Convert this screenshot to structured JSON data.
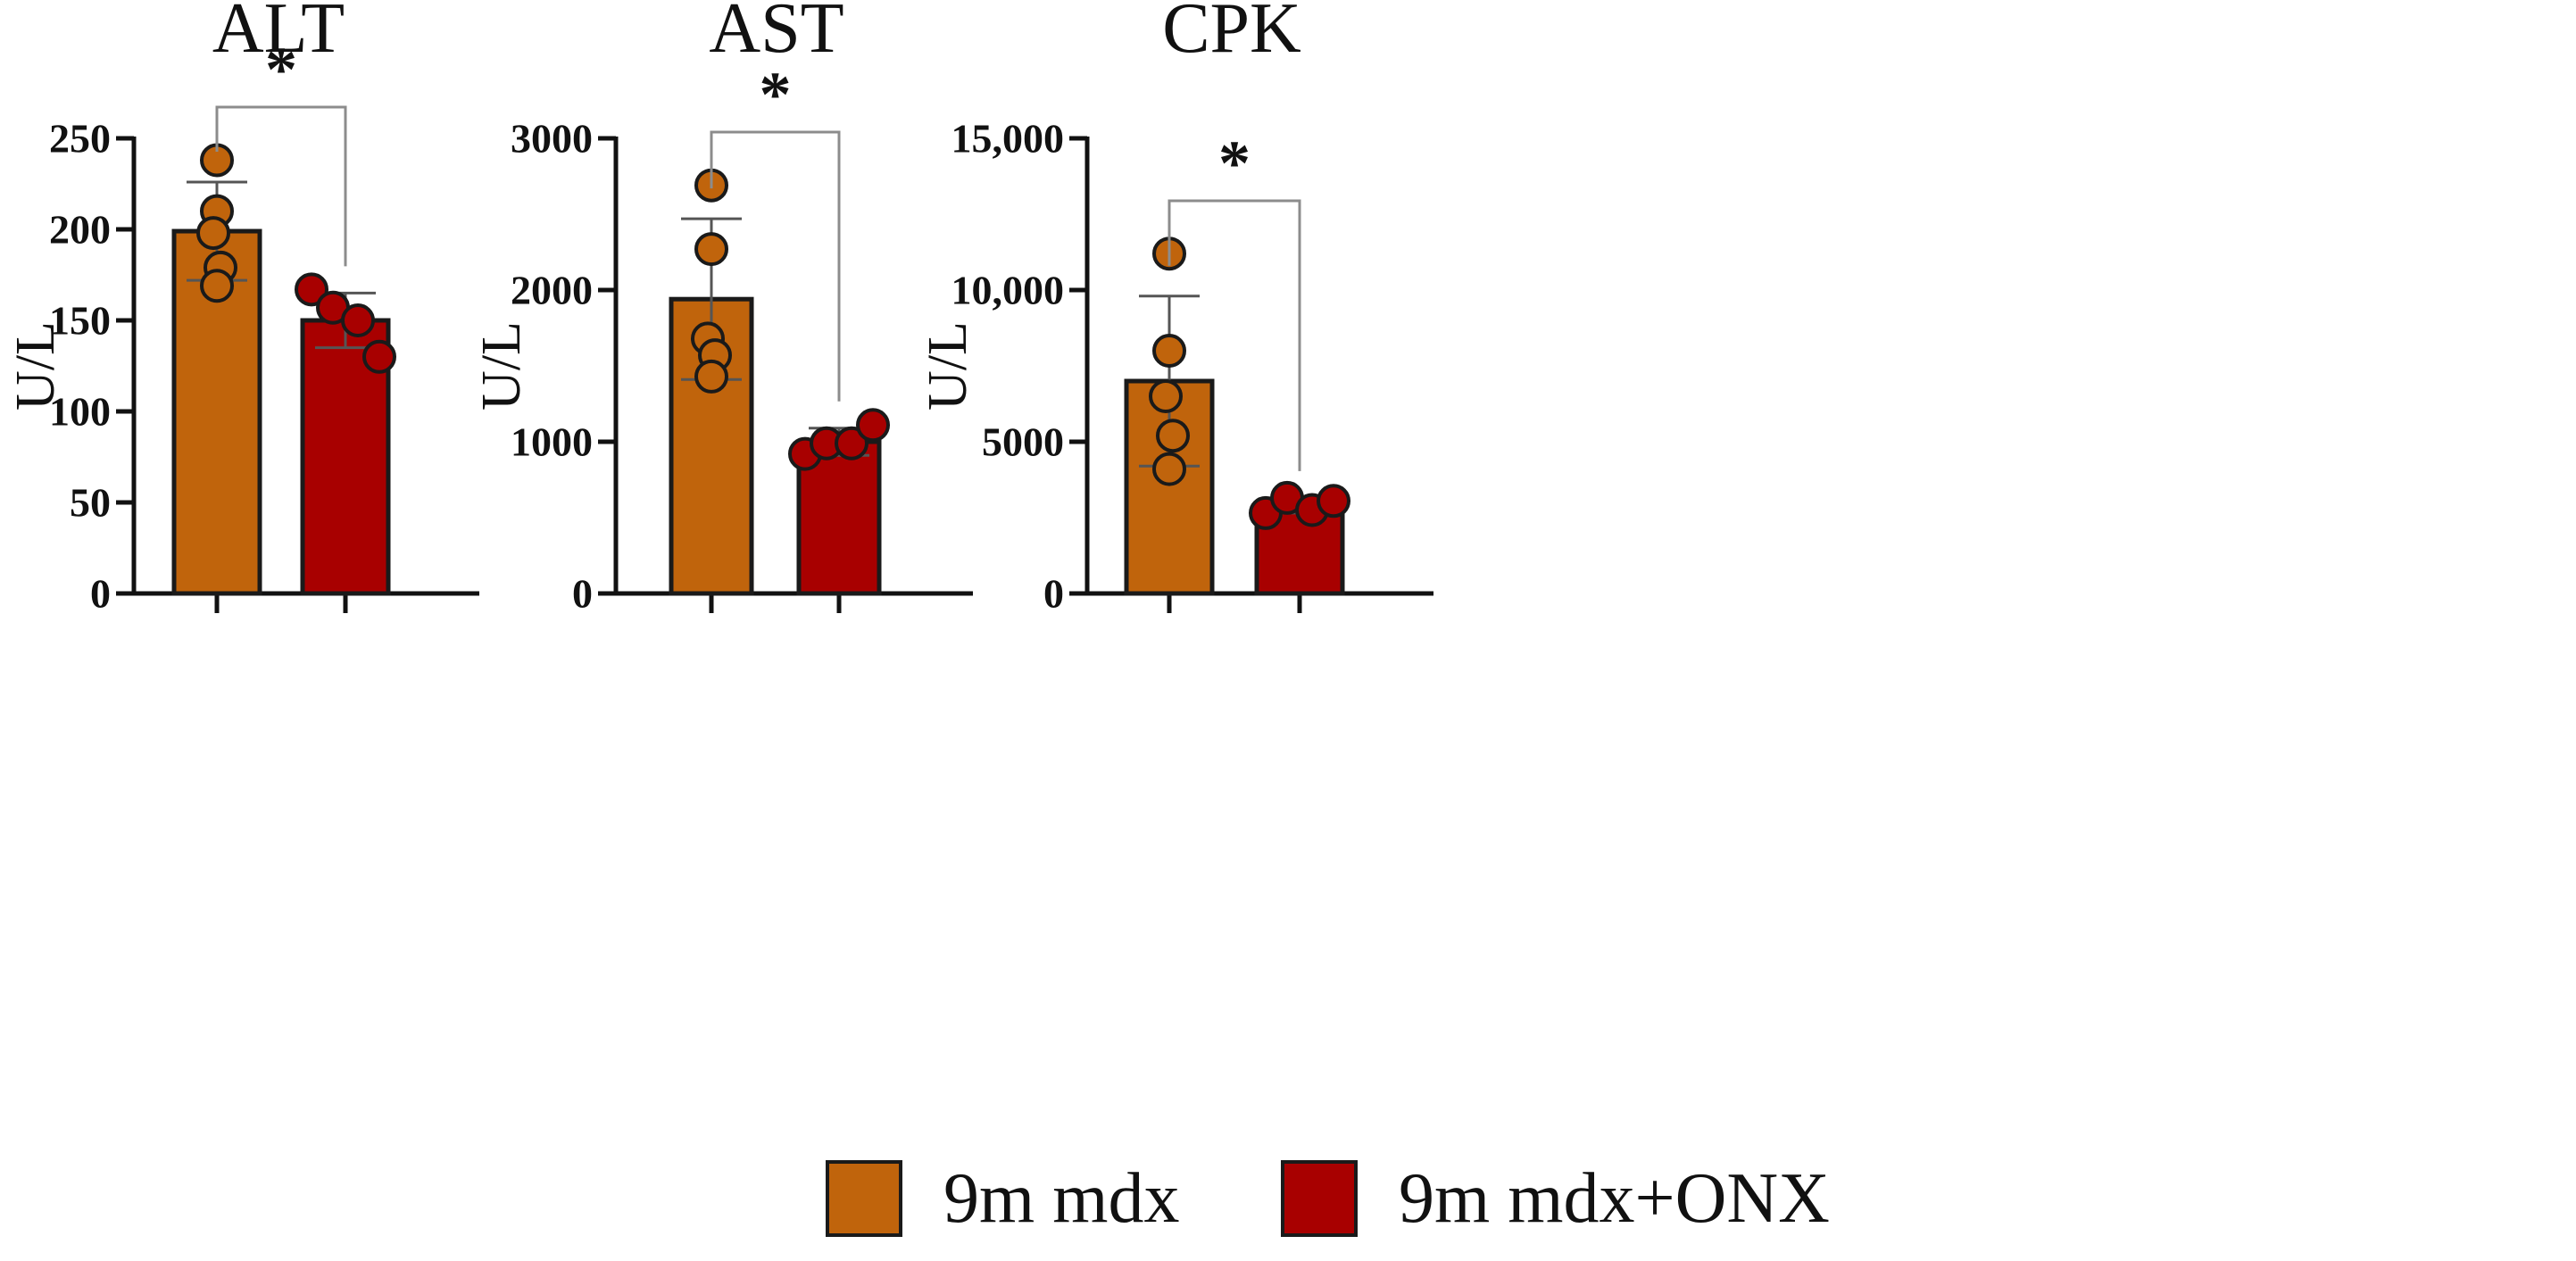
{
  "chart_data": [
    {
      "type": "bar",
      "title": "ALT",
      "ylabel": "U/L",
      "ylim": [
        0,
        250
      ],
      "yticks": [
        0,
        50,
        100,
        150,
        200,
        250
      ],
      "ytick_labels": [
        "0",
        "50",
        "100",
        "150",
        "200",
        "250"
      ],
      "categories": [
        "9m mdx",
        "9m mdx+ONX"
      ],
      "means": [
        199,
        150
      ],
      "sd": [
        27,
        15
      ],
      "points": [
        [
          238,
          210,
          198,
          179,
          169
        ],
        [
          167,
          157,
          150,
          130
        ]
      ],
      "significance": "*"
    },
    {
      "type": "bar",
      "title": "AST",
      "ylabel": "U/L",
      "ylim": [
        0,
        3000
      ],
      "yticks": [
        0,
        1000,
        2000,
        3000
      ],
      "ytick_labels": [
        "0",
        "1000",
        "2000",
        "3000"
      ],
      "categories": [
        "9m mdx",
        "9m mdx+ONX"
      ],
      "means": [
        1940,
        1000
      ],
      "sd": [
        530,
        90
      ],
      "points": [
        [
          2690,
          2270,
          1680,
          1570,
          1430
        ],
        [
          920,
          990,
          990,
          1110
        ]
      ],
      "significance": "*"
    },
    {
      "type": "bar",
      "title": "CPK",
      "ylabel": "U/L",
      "ylim": [
        0,
        15000
      ],
      "yticks": [
        0,
        5000,
        10000,
        15000
      ],
      "ytick_labels": [
        "0",
        "5000",
        "10,000",
        "15,000"
      ],
      "categories": [
        "9m mdx",
        "9m mdx+ONX"
      ],
      "means": [
        7000,
        2900
      ],
      "sd": [
        2800,
        250
      ],
      "points": [
        [
          11200,
          8000,
          6500,
          5200,
          4100
        ],
        [
          2650,
          3150,
          2750,
          3050
        ]
      ],
      "significance": "*"
    }
  ],
  "legend": {
    "items": [
      {
        "label": "9m mdx",
        "color": "#c0640c"
      },
      {
        "label": "9m mdx+ONX",
        "color": "#a80000"
      }
    ]
  },
  "style": {
    "bar_colors": [
      "#c0640c",
      "#a80000"
    ],
    "bracket_color": "#8c8c8c",
    "axis_color": "#111111"
  }
}
